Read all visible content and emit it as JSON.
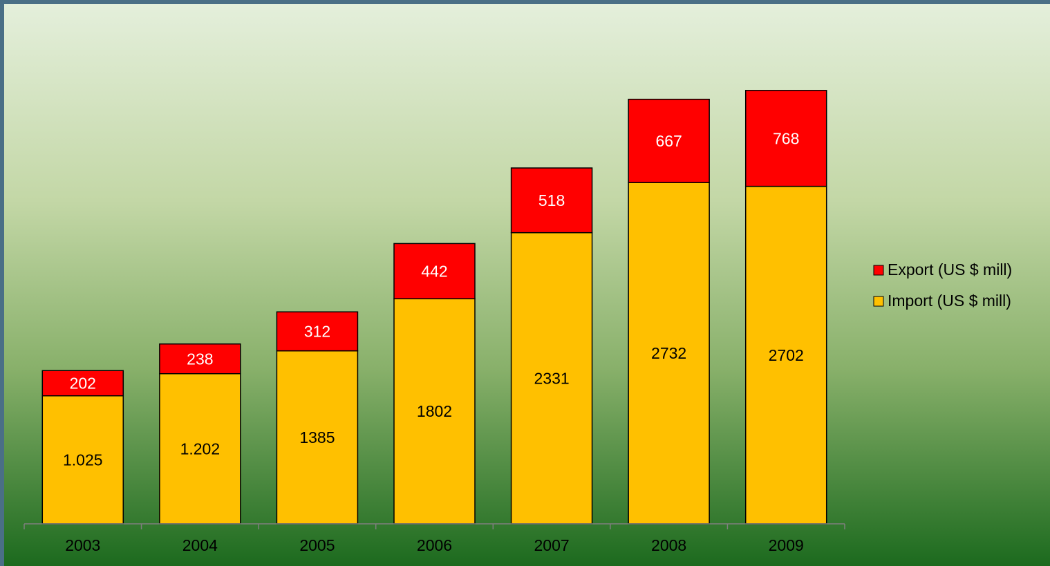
{
  "chart_data": {
    "type": "stacked_bar",
    "categories": [
      "2003",
      "2004",
      "2005",
      "2006",
      "2007",
      "2008",
      "2009"
    ],
    "series": [
      {
        "name": "Import (US $ mill)",
        "color": "#ffc000",
        "label_color": "#000000",
        "values": [
          1025,
          1202,
          1385,
          1802,
          2331,
          2732,
          2702
        ],
        "value_labels": [
          "1.025",
          "1.202",
          "1385",
          "1802",
          "2331",
          "2732",
          "2702"
        ]
      },
      {
        "name": "Export (US $ mill)",
        "color": "#ff0000",
        "label_color": "#ffffff",
        "values": [
          202,
          238,
          312,
          442,
          518,
          667,
          768
        ]
      }
    ],
    "ylim": [
      0,
      4000
    ],
    "legend": "right"
  }
}
